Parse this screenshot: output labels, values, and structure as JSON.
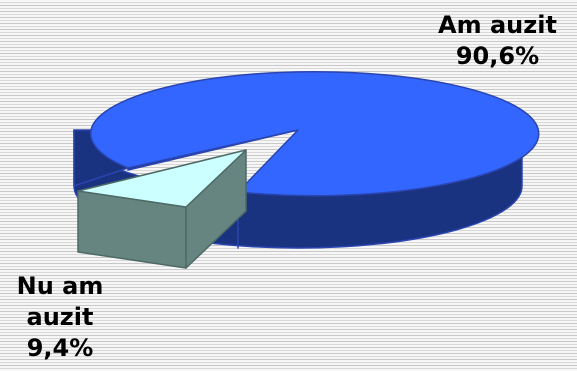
{
  "chart_data": {
    "type": "pie",
    "style": "3d-exploded",
    "slices": [
      {
        "label_line1": "Am auzit",
        "label_line2": "",
        "value_label": "90,6%",
        "value": 90.6,
        "color_top": "#3366ff",
        "color_side": "#1a3380",
        "color_edge": "#2a44b0"
      },
      {
        "label_line1": "Nu am",
        "label_line2": "auzit",
        "value_label": "9,4%",
        "value": 9.4,
        "color_top": "#ccffff",
        "color_side": "#668480",
        "color_edge": "#4e6a66"
      }
    ]
  }
}
